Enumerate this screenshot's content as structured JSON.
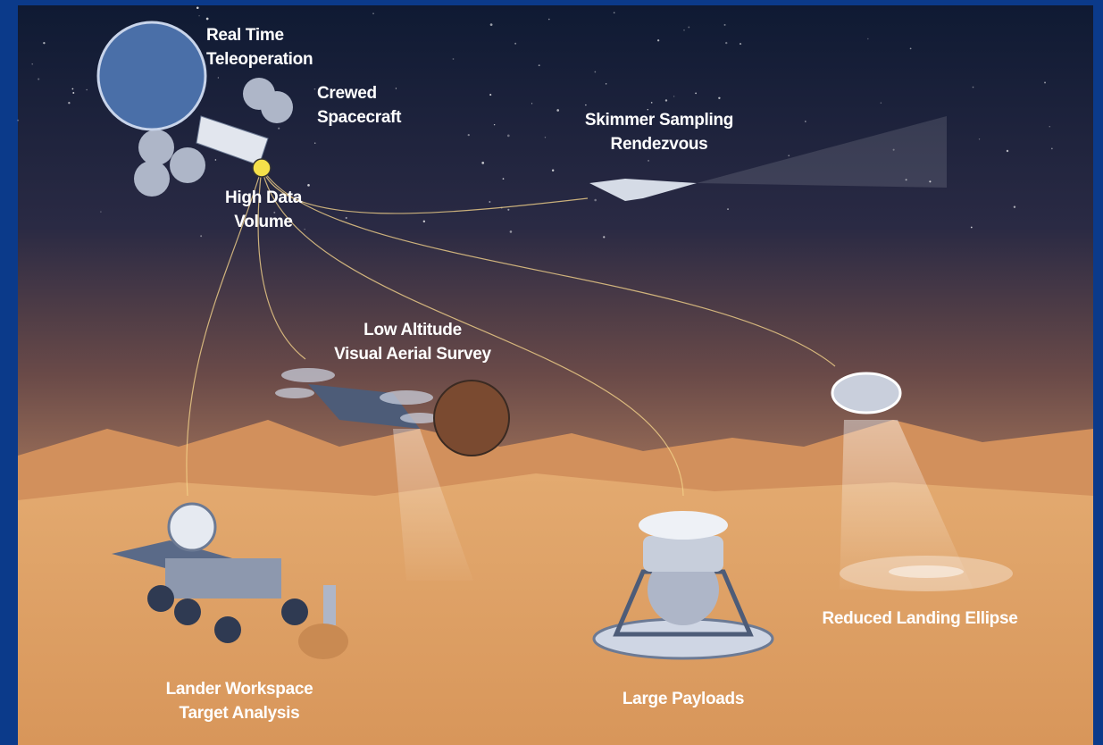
{
  "labels": [
    {
      "lines": [
        "Real Time",
        "Teleoperation"
      ]
    },
    {
      "lines": [
        "Crewed",
        "Spacecraft"
      ]
    },
    {
      "lines": [
        "High Data",
        "Volume"
      ]
    },
    {
      "lines": [
        "Skimmer Sampling",
        "Rendezvous"
      ]
    },
    {
      "lines": [
        "Low Altitude",
        "Visual Aerial Survey"
      ]
    },
    {
      "lines": [
        "Reduced Landing Ellipse"
      ]
    },
    {
      "lines": [
        "Lander Workspace",
        "Target Analysis"
      ]
    },
    {
      "lines": [
        "Large Payloads"
      ]
    }
  ]
}
